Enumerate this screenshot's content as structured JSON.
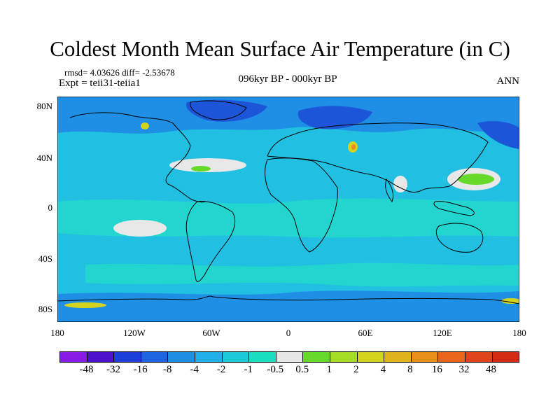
{
  "title": "Coldest Month Mean Surface Air Temperature (in C)",
  "stats": "rmsd= 4.03626 diff= -2.53678",
  "expt": "Expt = teii31-teiia1",
  "center_label": "096kyr BP - 000kyr BP",
  "season": "ANN",
  "lat_labels": [
    "80N",
    "40N",
    "0",
    "40S",
    "80S"
  ],
  "lon_labels": [
    "180",
    "120W",
    "60W",
    "0",
    "60E",
    "120E",
    "180"
  ],
  "colorbar": {
    "labels": [
      "-48",
      "-32",
      "-16",
      "-8",
      "-4",
      "-2",
      "-1",
      "-0.5",
      "0.5",
      "1",
      "2",
      "4",
      "8",
      "16",
      "32",
      "48"
    ],
    "colors": [
      "#8a1ae6",
      "#4b12c9",
      "#1c3fd8",
      "#1e63e0",
      "#1f8fe6",
      "#21b0ea",
      "#1ccbd9",
      "#19dfc0",
      "#e6e6e6",
      "#66d92a",
      "#a6de27",
      "#d4d41f",
      "#e0b21c",
      "#e88f1a",
      "#e8651a",
      "#e0441a",
      "#d32a12"
    ]
  },
  "map_colors": {
    "base": "#21c0e2",
    "light": "#22d6cf",
    "blue": "#1e8fe4",
    "dark_blue": "#1c55d8",
    "white": "#e8e8e8",
    "green": "#66d92a",
    "yellow": "#d4d41f",
    "orange": "#e88f1a"
  }
}
